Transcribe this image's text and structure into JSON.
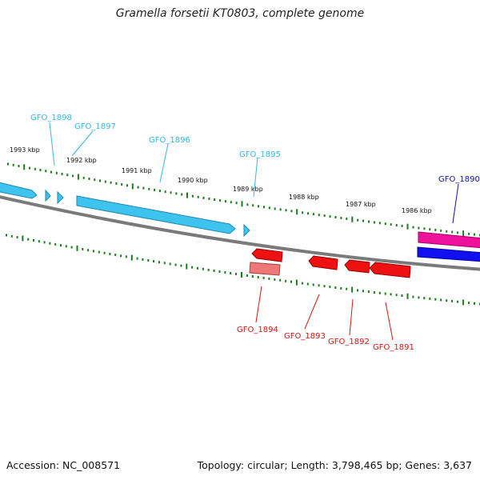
{
  "title": "Gramella forsetii KT0803, complete genome",
  "footer": {
    "accession": "Accession: NC_008571",
    "summary": "Topology: circular; Length: 3,798,465 bp; Genes: 3,637"
  },
  "colors": {
    "forward_gene": "#3ec2ee",
    "forward_label": "#36b8e0",
    "reverse_gene": "#ee1111",
    "reverse_label": "#dd1111",
    "reverse_gene_light": "#ee7777",
    "pink_gene": "#ee1199",
    "blue_gene": "#1111ee",
    "blue_label": "#1111aa",
    "backbone": "#7a7a7a",
    "ticks": "#1e7a1e"
  },
  "kbp_ticks": [
    "1993 kbp",
    "1992 kbp",
    "1991 kbp",
    "1990 kbp",
    "1989 kbp",
    "1988 kbp",
    "1987 kbp",
    "1986 kbp"
  ],
  "genes": {
    "gfo_1898": "GFO_1898",
    "gfo_1897": "GFO_1897",
    "gfo_1896": "GFO_1896",
    "gfo_1895": "GFO_1895",
    "gfo_1890": "GFO_1890",
    "gfo_1894": "GFO_1894",
    "gfo_1893": "GFO_1893",
    "gfo_1892": "GFO_1892",
    "gfo_1891": "GFO_1891"
  }
}
